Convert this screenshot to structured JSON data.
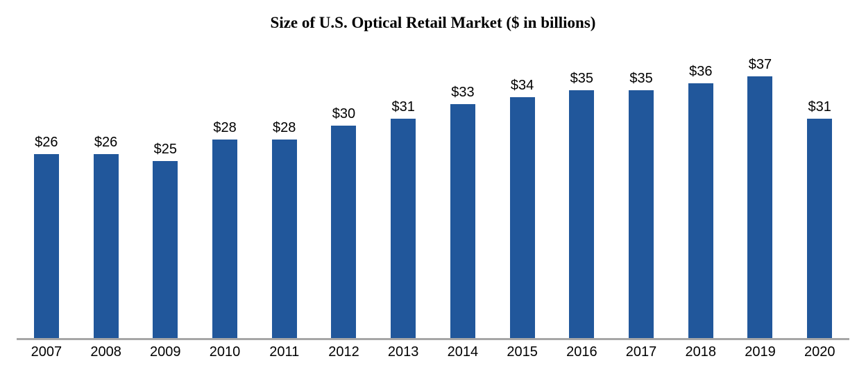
{
  "chart_data": {
    "type": "bar",
    "title": "Size of U.S. Optical Retail Market ($ in billions)",
    "categories": [
      "2007",
      "2008",
      "2009",
      "2010",
      "2011",
      "2012",
      "2013",
      "2014",
      "2015",
      "2016",
      "2017",
      "2018",
      "2019",
      "2020"
    ],
    "values": [
      26,
      26,
      25,
      28,
      28,
      30,
      31,
      33,
      34,
      35,
      35,
      36,
      37,
      31
    ],
    "value_labels": [
      "$26",
      "$26",
      "$25",
      "$28",
      "$28",
      "$30",
      "$31",
      "$33",
      "$34",
      "$35",
      "$35",
      "$36",
      "$37",
      "$31"
    ],
    "xlabel": "",
    "ylabel": "",
    "ylim": [
      0,
      40
    ],
    "grid": false,
    "legend": "none",
    "bar_color": "#21579b",
    "axis_color": "#a6a6a6",
    "title_color": "#000000",
    "label_color": "#000000"
  }
}
